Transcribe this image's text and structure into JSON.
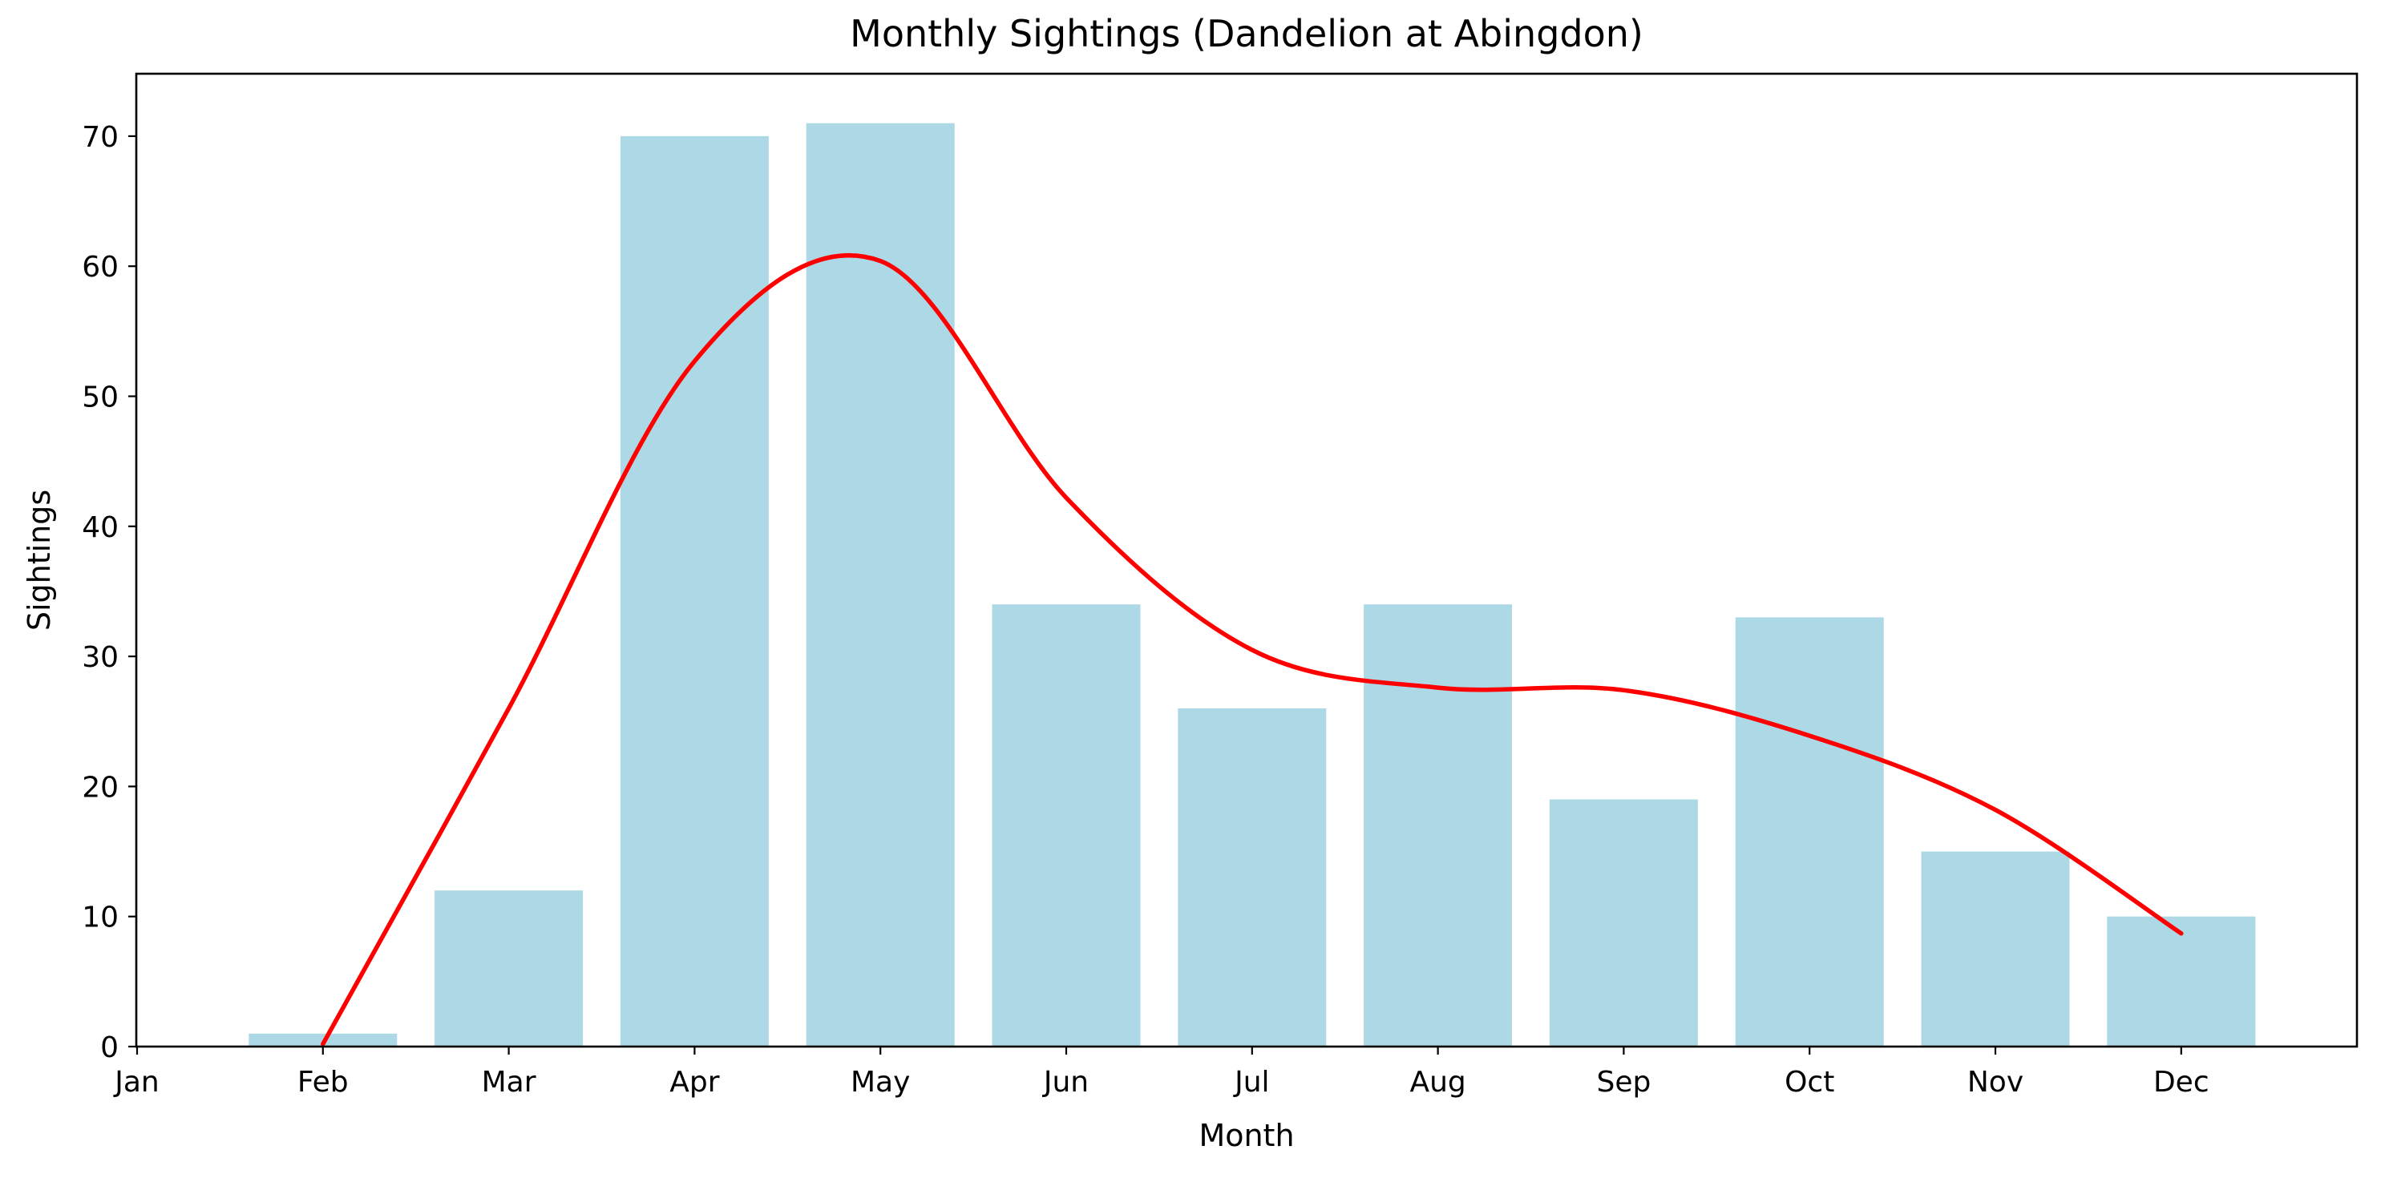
{
  "figure": {
    "background": "#ffffff",
    "text_color": "#000000"
  },
  "chart_data": {
    "type": "bar",
    "title": "Monthly Sightings (Dandelion at Abingdon)",
    "xlabel": "Month",
    "ylabel": "Sightings",
    "categories": [
      "Jan",
      "Feb",
      "Mar",
      "Apr",
      "May",
      "Jun",
      "Jul",
      "Aug",
      "Sep",
      "Oct",
      "Nov",
      "Dec"
    ],
    "series": [
      {
        "name": "monthly-sightings-bars",
        "type": "bar",
        "color": "#ADD8E6",
        "values": [
          0,
          1,
          12,
          70,
          71,
          34,
          26,
          34,
          19,
          33,
          15,
          10
        ]
      },
      {
        "name": "smoothed-trend-line",
        "type": "line",
        "color": "#FF0000",
        "values": [
          null,
          0.2,
          26,
          52.7,
          60.4,
          42.2,
          30.5,
          27.6,
          27.4,
          23.9,
          18.2,
          8.7
        ]
      }
    ],
    "ylim": [
      0,
      74.8
    ],
    "yticks": [
      0,
      10,
      20,
      30,
      40,
      50,
      60,
      70
    ],
    "grid": false,
    "legend_position": "none"
  }
}
